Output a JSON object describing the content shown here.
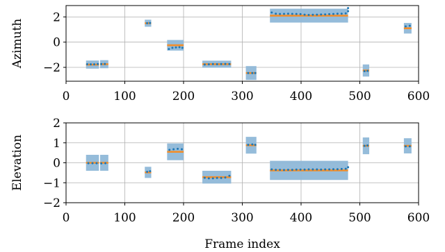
{
  "chart_data": [
    {
      "type": "scatter",
      "ylabel": "Azimuth",
      "xlabel": "",
      "xlim": [
        0,
        600
      ],
      "ylim": [
        -3.1,
        2.9
      ],
      "xticks": [
        0,
        100,
        200,
        300,
        400,
        500,
        600
      ],
      "yticks": [
        -2,
        0,
        2
      ],
      "grid": true,
      "series": [
        {
          "segments": [
            {
              "x0": 34,
              "x1": 56,
              "y": -1.78,
              "band": 0.32
            },
            {
              "x0": 58,
              "x1": 72,
              "y": -1.75,
              "band": 0.32
            },
            {
              "x0": 134,
              "x1": 145,
              "y": 1.5,
              "band": 0.28
            },
            {
              "x0": 172,
              "x1": 200,
              "y": -0.25,
              "band": 0.42
            },
            {
              "x0": 232,
              "x1": 281,
              "y": -1.75,
              "band": 0.28
            },
            {
              "x0": 306,
              "x1": 324,
              "y": -2.45,
              "band": 0.55
            },
            {
              "x0": 347,
              "x1": 400,
              "y": 2.1,
              "band": 0.55
            },
            {
              "x0": 400,
              "x1": 480,
              "y": 2.1,
              "band": 0.55
            },
            {
              "x0": 505,
              "x1": 516,
              "y": -2.25,
              "band": 0.48
            },
            {
              "x0": 575,
              "x1": 588,
              "y": 1.1,
              "band": 0.42
            }
          ],
          "points": [
            [
              36,
              -1.75
            ],
            [
              42,
              -1.76
            ],
            [
              48,
              -1.76
            ],
            [
              54,
              -1.74
            ],
            [
              60,
              -1.74
            ],
            [
              66,
              -1.73
            ],
            [
              138,
              1.5
            ],
            [
              143,
              1.52
            ],
            [
              175,
              -0.55
            ],
            [
              181,
              -0.45
            ],
            [
              187,
              -0.42
            ],
            [
              193,
              -0.4
            ],
            [
              198,
              -0.45
            ],
            [
              236,
              -1.78
            ],
            [
              243,
              -1.76
            ],
            [
              250,
              -1.74
            ],
            [
              257,
              -1.75
            ],
            [
              264,
              -1.74
            ],
            [
              271,
              -1.73
            ],
            [
              278,
              -1.74
            ],
            [
              310,
              -2.45
            ],
            [
              317,
              -2.45
            ],
            [
              322,
              -2.45
            ],
            [
              350,
              2.35
            ],
            [
              357,
              2.25
            ],
            [
              364,
              2.23
            ],
            [
              371,
              2.24
            ],
            [
              378,
              2.25
            ],
            [
              385,
              2.24
            ],
            [
              392,
              2.23
            ],
            [
              399,
              2.22
            ],
            [
              406,
              2.18
            ],
            [
              413,
              2.16
            ],
            [
              420,
              2.17
            ],
            [
              427,
              2.18
            ],
            [
              434,
              2.19
            ],
            [
              441,
              2.2
            ],
            [
              448,
              2.22
            ],
            [
              455,
              2.23
            ],
            [
              462,
              2.25
            ],
            [
              469,
              2.25
            ],
            [
              476,
              2.28
            ],
            [
              480,
              2.45
            ],
            [
              480,
              2.7
            ],
            [
              508,
              -2.3
            ],
            [
              513,
              -2.28
            ],
            [
              578,
              1.25
            ],
            [
              585,
              1.3
            ]
          ]
        }
      ]
    },
    {
      "type": "scatter",
      "ylabel": "Elevation",
      "xlabel": "Frame index",
      "xlim": [
        0,
        600
      ],
      "ylim": [
        -2,
        2
      ],
      "xticks": [
        0,
        100,
        200,
        300,
        400,
        500,
        600
      ],
      "yticks": [
        -2,
        -1,
        0,
        1,
        2
      ],
      "grid": true,
      "series": [
        {
          "segments": [
            {
              "x0": 34,
              "x1": 56,
              "y": 0.0,
              "band": 0.4
            },
            {
              "x0": 58,
              "x1": 72,
              "y": 0.0,
              "band": 0.4
            },
            {
              "x0": 134,
              "x1": 145,
              "y": -0.48,
              "band": 0.28
            },
            {
              "x0": 172,
              "x1": 200,
              "y": 0.55,
              "band": 0.42
            },
            {
              "x0": 232,
              "x1": 281,
              "y": -0.72,
              "band": 0.32
            },
            {
              "x0": 306,
              "x1": 324,
              "y": 0.88,
              "band": 0.42
            },
            {
              "x0": 347,
              "x1": 480,
              "y": -0.38,
              "band": 0.48
            },
            {
              "x0": 505,
              "x1": 516,
              "y": 0.85,
              "band": 0.42
            },
            {
              "x0": 575,
              "x1": 588,
              "y": 0.85,
              "band": 0.38
            }
          ],
          "points": [
            [
              38,
              -0.02
            ],
            [
              45,
              -0.02
            ],
            [
              52,
              -0.02
            ],
            [
              60,
              -0.03
            ],
            [
              67,
              -0.02
            ],
            [
              138,
              -0.45
            ],
            [
              143,
              -0.42
            ],
            [
              176,
              0.65
            ],
            [
              183,
              0.68
            ],
            [
              190,
              0.7
            ],
            [
              197,
              0.68
            ],
            [
              236,
              -0.75
            ],
            [
              243,
              -0.78
            ],
            [
              250,
              -0.78
            ],
            [
              257,
              -0.76
            ],
            [
              264,
              -0.76
            ],
            [
              271,
              -0.74
            ],
            [
              278,
              -0.65
            ],
            [
              310,
              0.9
            ],
            [
              317,
              0.92
            ],
            [
              322,
              0.9
            ],
            [
              350,
              -0.33
            ],
            [
              357,
              -0.35
            ],
            [
              364,
              -0.35
            ],
            [
              371,
              -0.36
            ],
            [
              378,
              -0.35
            ],
            [
              385,
              -0.35
            ],
            [
              392,
              -0.34
            ],
            [
              399,
              -0.34
            ],
            [
              406,
              -0.34
            ],
            [
              413,
              -0.33
            ],
            [
              420,
              -0.33
            ],
            [
              427,
              -0.33
            ],
            [
              434,
              -0.34
            ],
            [
              441,
              -0.33
            ],
            [
              448,
              -0.33
            ],
            [
              455,
              -0.32
            ],
            [
              462,
              -0.32
            ],
            [
              469,
              -0.31
            ],
            [
              476,
              -0.3
            ],
            [
              480,
              -0.22
            ],
            [
              508,
              0.85
            ],
            [
              513,
              0.87
            ],
            [
              578,
              0.82
            ],
            [
              585,
              0.82
            ]
          ]
        }
      ]
    }
  ],
  "colors": {
    "band": "#8fb8d8",
    "mean_line": "#f28e2b",
    "point": "#1f77b4",
    "grid": "#b0b0b0",
    "axis": "#000000"
  }
}
